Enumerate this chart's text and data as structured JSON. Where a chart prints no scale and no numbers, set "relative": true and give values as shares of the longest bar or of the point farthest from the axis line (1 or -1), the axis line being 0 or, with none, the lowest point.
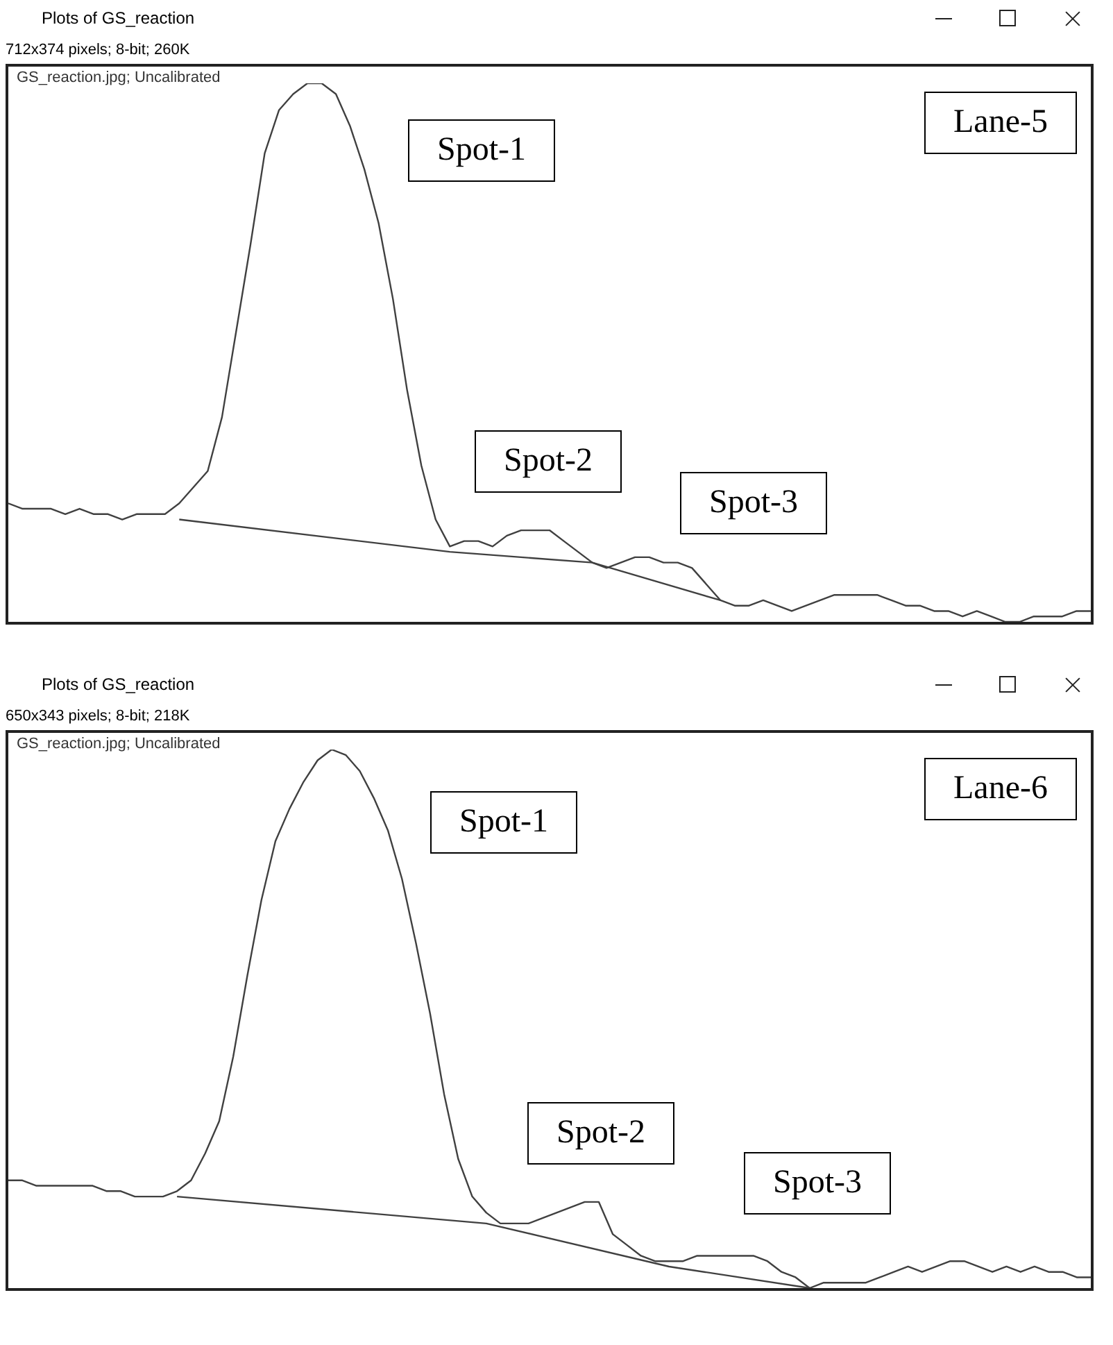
{
  "chart_data": [
    {
      "type": "line",
      "title": "Plots of GS_reaction",
      "subtitle": "712x374 pixels; 8-bit; 260K",
      "relative": true,
      "marker": "none",
      "line_style": "solid",
      "annotations": [
        "GS_reaction.jpg; Uncalibrated",
        "Lane-5",
        "Spot-1",
        "Spot-2",
        "Spot-3"
      ],
      "categories": [
        null,
        null,
        null,
        null,
        null,
        null,
        null,
        null,
        null,
        null,
        null,
        null,
        null,
        null,
        null,
        null,
        null,
        null,
        null,
        null,
        null,
        null,
        null,
        null,
        null,
        null,
        null,
        null,
        null,
        null,
        null,
        null,
        null,
        null,
        null,
        null,
        null,
        null,
        null,
        null,
        null,
        null,
        null,
        null,
        null,
        null,
        null,
        null,
        null,
        null,
        null,
        null,
        null,
        null,
        null,
        null,
        null,
        null,
        null,
        null,
        null,
        null,
        null,
        null,
        null,
        null,
        null,
        null,
        null,
        null,
        null,
        null,
        null,
        null,
        null,
        null,
        null
      ],
      "series": [
        {
          "color": "#404040",
          "values": [
            0.22,
            0.21,
            0.21,
            0.21,
            0.2,
            0.21,
            0.2,
            0.2,
            0.19,
            0.2,
            0.2,
            0.2,
            0.22,
            0.25,
            0.28,
            0.38,
            0.54,
            0.7,
            0.87,
            0.95,
            0.98,
            1,
            1,
            0.98,
            0.92,
            0.84,
            0.74,
            0.6,
            0.43,
            0.29,
            0.19,
            0.14,
            0.15,
            0.15,
            0.14,
            0.16,
            0.17,
            0.17,
            0.17,
            0.15,
            0.13,
            0.11,
            0.1,
            0.11,
            0.12,
            0.12,
            0.11,
            0.11,
            0.1,
            0.07,
            0.04,
            0.03,
            0.03,
            0.04,
            0.03,
            0.02,
            0.03,
            0.04,
            0.05,
            0.05,
            0.05,
            0.05,
            0.04,
            0.03,
            0.03,
            0.02,
            0.02,
            0.01,
            0.02,
            0.01,
            0.0,
            0,
            0.01,
            0.01,
            0.01,
            0.02,
            0.02
          ]
        },
        {
          "type": "line",
          "color": "#404040",
          "values": [
            null,
            null,
            null,
            null,
            null,
            null,
            null,
            null,
            null,
            null,
            null,
            null,
            0.19,
            null,
            null,
            null,
            null,
            null,
            null,
            null,
            null,
            null,
            null,
            null,
            null,
            null,
            null,
            null,
            null,
            null,
            null,
            0.13,
            null,
            null,
            null,
            null,
            null,
            null,
            null,
            null,
            null,
            0.11,
            null,
            null,
            null,
            null,
            null,
            null,
            null,
            null,
            0.04,
            null,
            null,
            null,
            null,
            null,
            null,
            null,
            null,
            null,
            null,
            null,
            null,
            null,
            null,
            null,
            null,
            null,
            null,
            null,
            null,
            null,
            null,
            null,
            null,
            null,
            null
          ]
        }
      ]
    },
    {
      "type": "line",
      "title": "Plots of GS_reaction",
      "subtitle": "650x343 pixels; 8-bit; 218K",
      "relative": true,
      "marker": "none",
      "line_style": "solid",
      "annotations": [
        "GS_reaction.jpg; Uncalibrated",
        "Lane-6",
        "Spot-1",
        "Spot-2",
        "Spot-3"
      ],
      "categories": [
        null,
        null,
        null,
        null,
        null,
        null,
        null,
        null,
        null,
        null,
        null,
        null,
        null,
        null,
        null,
        null,
        null,
        null,
        null,
        null,
        null,
        null,
        null,
        null,
        null,
        null,
        null,
        null,
        null,
        null,
        null,
        null,
        null,
        null,
        null,
        null,
        null,
        null,
        null,
        null,
        null,
        null,
        null,
        null,
        null,
        null,
        null,
        null,
        null,
        null,
        null,
        null,
        null,
        null,
        null,
        null,
        null,
        null,
        null,
        null,
        null,
        null,
        null,
        null,
        null,
        null,
        null,
        null,
        null,
        null,
        null,
        null,
        null,
        null,
        null,
        null,
        null,
        null
      ],
      "series": [
        {
          "color": "#404040",
          "values": [
            0.2,
            0.2,
            0.19,
            0.19,
            0.19,
            0.19,
            0.19,
            0.18,
            0.18,
            0.17,
            0.17,
            0.17,
            0.18,
            0.2,
            0.25,
            0.31,
            0.43,
            0.58,
            0.72,
            0.83,
            0.89,
            0.94,
            0.98,
            1,
            0.99,
            0.96,
            0.91,
            0.85,
            0.76,
            0.64,
            0.51,
            0.36,
            0.24,
            0.17,
            0.14,
            0.12,
            0.12,
            0.12,
            0.13,
            0.14,
            0.15,
            0.16,
            0.16,
            0.1,
            0.08,
            0.06,
            0.05,
            0.05,
            0.05,
            0.06,
            0.06,
            0.06,
            0.06,
            0.06,
            0.05,
            0.03,
            0.02,
            0,
            0.01,
            0.01,
            0.01,
            0.01,
            0.02,
            0.03,
            0.04,
            0.03,
            0.04,
            0.05,
            0.05,
            0.04,
            0.03,
            0.04,
            0.03,
            0.04,
            0.03,
            0.03,
            0.02,
            0.02
          ]
        },
        {
          "type": "line",
          "color": "#404040",
          "values": [
            null,
            null,
            null,
            null,
            null,
            null,
            null,
            null,
            null,
            null,
            null,
            null,
            0.17,
            null,
            null,
            null,
            null,
            null,
            null,
            null,
            null,
            null,
            null,
            null,
            null,
            null,
            null,
            null,
            null,
            null,
            null,
            null,
            null,
            null,
            0.12,
            null,
            null,
            null,
            null,
            null,
            null,
            null,
            null,
            null,
            null,
            null,
            null,
            0.04,
            null,
            null,
            null,
            null,
            null,
            null,
            null,
            null,
            null,
            0,
            null,
            null,
            null,
            null,
            null,
            null,
            null,
            null,
            null,
            null,
            null,
            null,
            null,
            null,
            null,
            null,
            null,
            null,
            null,
            null
          ]
        }
      ]
    }
  ]
}
